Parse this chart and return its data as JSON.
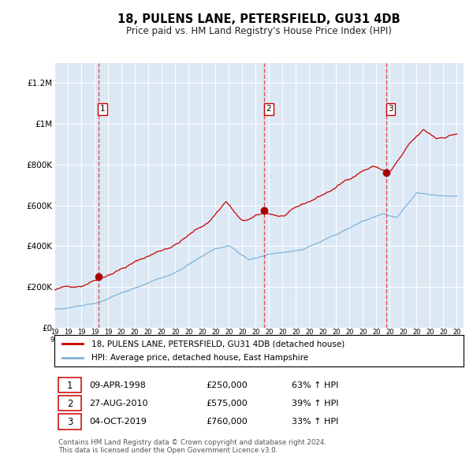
{
  "title": "18, PULENS LANE, PETERSFIELD, GU31 4DB",
  "subtitle": "Price paid vs. HM Land Registry's House Price Index (HPI)",
  "plot_bg_color": "#dce9f5",
  "ylim": [
    0,
    1300000
  ],
  "yticks": [
    0,
    200000,
    400000,
    600000,
    800000,
    1000000,
    1200000
  ],
  "ytick_labels": [
    "£0",
    "£200K",
    "£400K",
    "£600K",
    "£800K",
    "£1M",
    "£1.2M"
  ],
  "sale_dates_num": [
    1998.27,
    2010.65,
    2019.75
  ],
  "sale_prices": [
    250000,
    575000,
    760000
  ],
  "sale_labels": [
    "1",
    "2",
    "3"
  ],
  "legend_entries": [
    "18, PULENS LANE, PETERSFIELD, GU31 4DB (detached house)",
    "HPI: Average price, detached house, East Hampshire"
  ],
  "table_data": [
    [
      "1",
      "09-APR-1998",
      "£250,000",
      "63% ↑ HPI"
    ],
    [
      "2",
      "27-AUG-2010",
      "£575,000",
      "39% ↑ HPI"
    ],
    [
      "3",
      "04-OCT-2019",
      "£760,000",
      "33% ↑ HPI"
    ]
  ],
  "footnote": "Contains HM Land Registry data © Crown copyright and database right 2024.\nThis data is licensed under the Open Government Licence v3.0.",
  "red_line_color": "#cc0000",
  "blue_line_color": "#7fb3d9",
  "vline_color": "#e05050",
  "marker_color": "#aa0000",
  "xlim_left": 1995.0,
  "xlim_right": 2025.5
}
